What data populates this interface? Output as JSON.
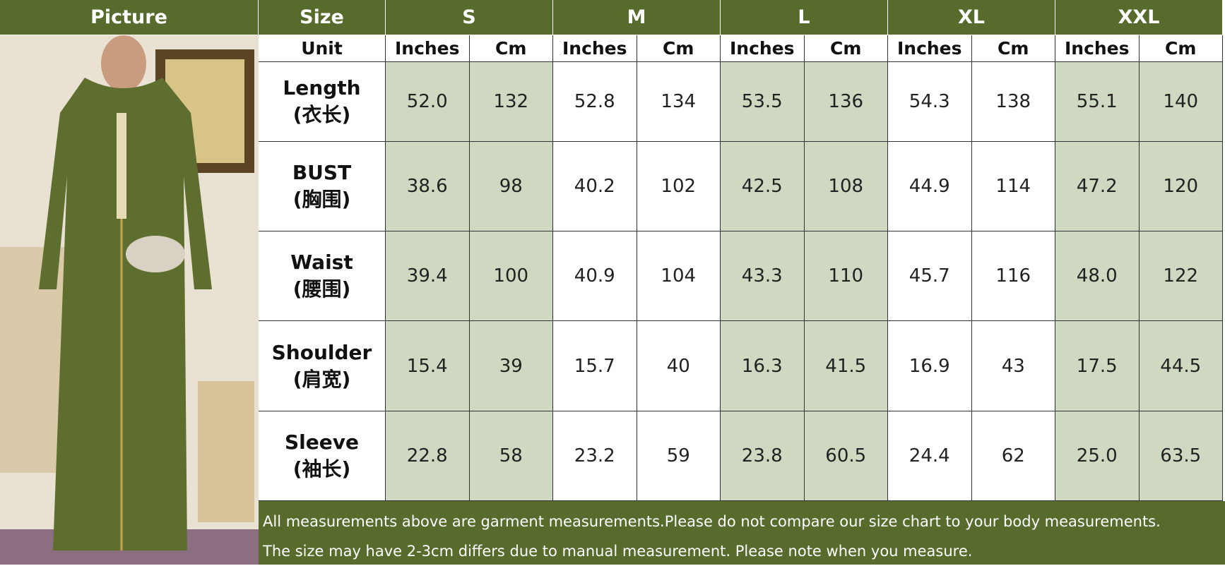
{
  "header": {
    "picture": "Picture",
    "size": "Size",
    "sizes": [
      "S",
      "M",
      "L",
      "XL",
      "XXL"
    ]
  },
  "unit_row": {
    "label": "Unit",
    "units": [
      "Inches",
      "Cm",
      "Inches",
      "Cm",
      "Inches",
      "Cm",
      "Inches",
      "Cm",
      "Inches",
      "Cm"
    ]
  },
  "rows": [
    {
      "label": "Length",
      "label_cn": "(衣长)",
      "values": [
        "52.0",
        "132",
        "52.8",
        "134",
        "53.5",
        "136",
        "54.3",
        "138",
        "55.1",
        "140"
      ]
    },
    {
      "label": "BUST",
      "label_cn": "(胸围)",
      "values": [
        "38.6",
        "98",
        "40.2",
        "102",
        "42.5",
        "108",
        "44.9",
        "114",
        "47.2",
        "120"
      ]
    },
    {
      "label": "Waist",
      "label_cn": "(腰围)",
      "values": [
        "39.4",
        "100",
        "40.9",
        "104",
        "43.3",
        "110",
        "45.7",
        "116",
        "48.0",
        "122"
      ]
    },
    {
      "label": "Shoulder",
      "label_cn": "(肩宽)",
      "values": [
        "15.4",
        "39",
        "15.7",
        "40",
        "16.3",
        "41.5",
        "16.9",
        "43",
        "17.5",
        "44.5"
      ]
    },
    {
      "label": "Sleeve",
      "label_cn": "(袖长)",
      "values": [
        "22.8",
        "58",
        "23.2",
        "59",
        "23.8",
        "60.5",
        "24.4",
        "62",
        "25.0",
        "63.5"
      ]
    }
  ],
  "notes": [
    "All measurements above are garment measurements.Please do not compare our size chart to your body measurements.",
    "The size may have 2-3cm differs due to manual measurement. Please note when you measure."
  ]
}
